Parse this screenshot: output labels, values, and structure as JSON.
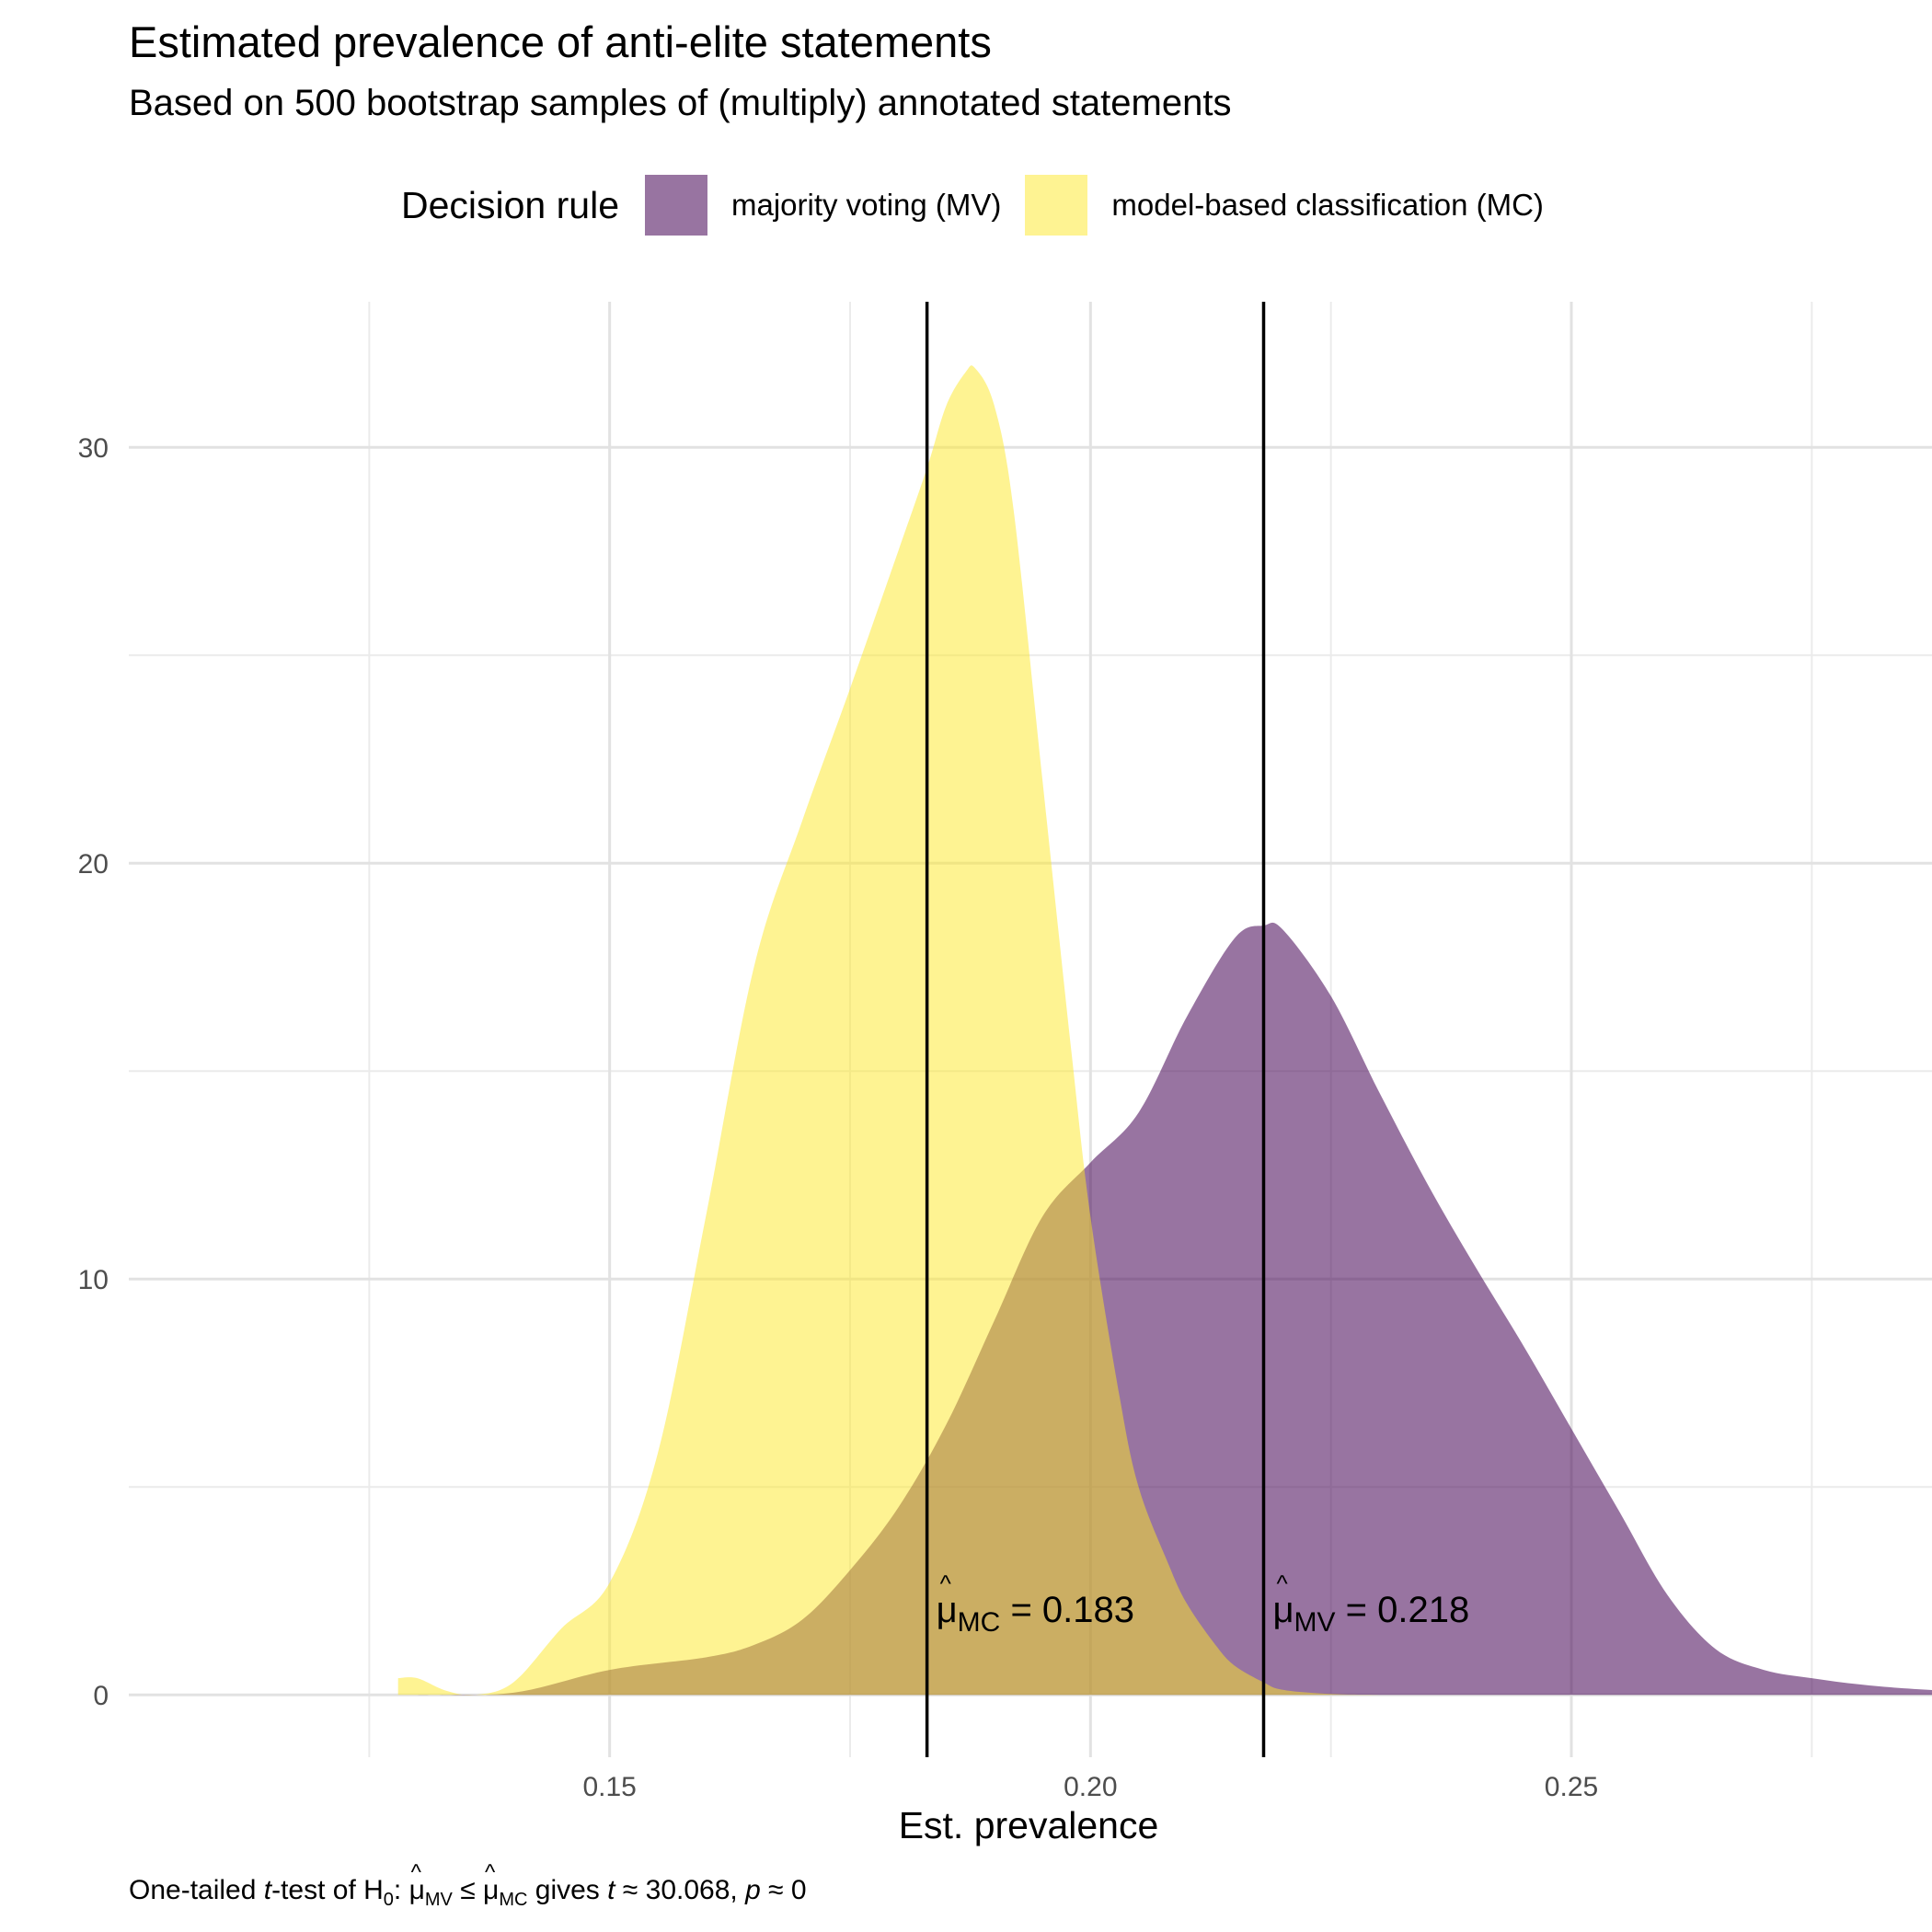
{
  "chart_data": {
    "type": "area",
    "title": "Estimated prevalence of anti-elite statements",
    "subtitle": "Based on 500 bootstrap samples of (multiply) annotated statements",
    "xlabel": "Est. prevalence",
    "ylabel": "",
    "xlim": [
      0.1,
      0.2875
    ],
    "ylim": [
      -1.5,
      33.5
    ],
    "x_ticks": [
      0.15,
      0.2,
      0.25
    ],
    "x_tick_labels": [
      "0.15",
      "0.20",
      "0.25"
    ],
    "y_ticks": [
      0,
      10,
      20,
      30
    ],
    "y_tick_labels": [
      "0",
      "10",
      "20",
      "30"
    ],
    "grid": true,
    "legend": {
      "title": "Decision rule",
      "position": "top"
    },
    "series": [
      {
        "name": "majority voting (MV)",
        "color": "#440154",
        "opacity": 0.55,
        "x": [
          0.13,
          0.14,
          0.15,
          0.16,
          0.165,
          0.17,
          0.175,
          0.18,
          0.185,
          0.19,
          0.195,
          0.2,
          0.205,
          0.21,
          0.215,
          0.218,
          0.22,
          0.225,
          0.23,
          0.235,
          0.24,
          0.245,
          0.25,
          0.255,
          0.26,
          0.265,
          0.27,
          0.275,
          0.28,
          0.285,
          0.289
        ],
        "y": [
          0.0,
          0.05,
          0.6,
          0.9,
          1.2,
          1.8,
          3.0,
          4.5,
          6.5,
          9.0,
          11.5,
          12.8,
          14.0,
          16.3,
          18.2,
          18.5,
          18.4,
          16.8,
          14.5,
          12.3,
          10.3,
          8.4,
          6.4,
          4.4,
          2.4,
          1.1,
          0.6,
          0.4,
          0.25,
          0.15,
          0.1
        ]
      },
      {
        "name": "model-based classification (MC)",
        "color": "#FDE725",
        "opacity": 0.5,
        "x": [
          0.128,
          0.13,
          0.133,
          0.136,
          0.14,
          0.145,
          0.15,
          0.155,
          0.16,
          0.165,
          0.17,
          0.175,
          0.18,
          0.183,
          0.185,
          0.187,
          0.188,
          0.19,
          0.192,
          0.195,
          0.198,
          0.2,
          0.203,
          0.205,
          0.208,
          0.21,
          0.213,
          0.215,
          0.218,
          0.22,
          0.225,
          0.23
        ],
        "y": [
          0.4,
          0.4,
          0.1,
          0.0,
          0.3,
          1.6,
          2.7,
          5.8,
          11.5,
          17.5,
          21.0,
          24.2,
          27.5,
          29.5,
          31.0,
          31.8,
          31.9,
          31.0,
          28.5,
          22.0,
          15.5,
          11.5,
          7.2,
          5.0,
          3.2,
          2.2,
          1.2,
          0.7,
          0.3,
          0.12,
          0.02,
          0.0
        ]
      }
    ],
    "vlines": [
      {
        "x": 0.183,
        "label_prefix": "μ",
        "label_sub": "MC",
        "label_value": "= 0.183"
      },
      {
        "x": 0.218,
        "label_prefix": "μ",
        "label_sub": "MV",
        "label_value": "= 0.218"
      }
    ]
  },
  "caption": {
    "part1": "One-tailed ",
    "t1": "t",
    "part2": "-test of H",
    "sub0": "0",
    "part3": ":  ",
    "mu": "μ",
    "sub_mv": "MV",
    "le": " ≤ ",
    "sub_mc": "MC",
    "part4": " gives ",
    "t2": "t",
    "part5": " ≈ 30.068,  ",
    "p": "p",
    "part6": " ≈ 0"
  }
}
